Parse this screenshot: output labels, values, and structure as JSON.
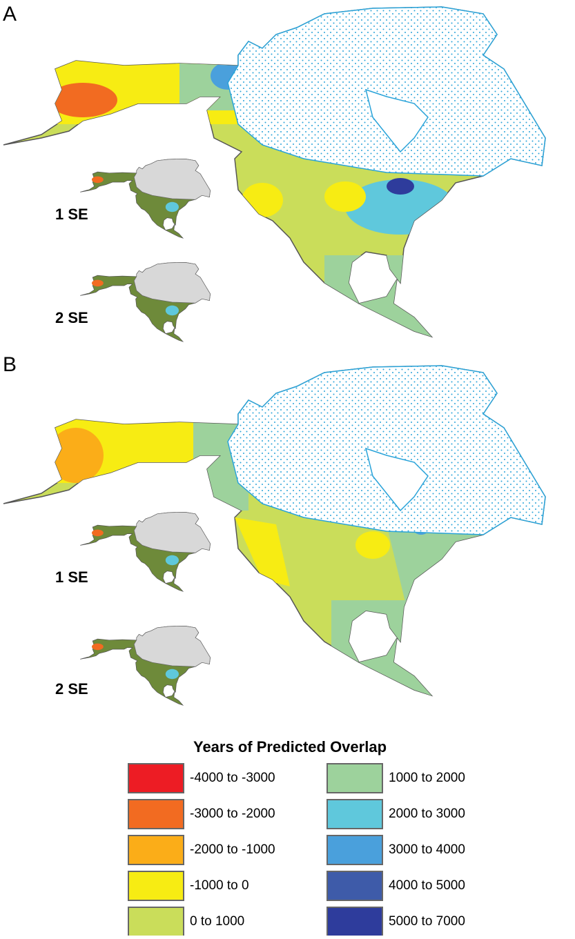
{
  "panels": [
    {
      "label": "A",
      "insets": [
        {
          "label": "1 SE"
        },
        {
          "label": "2 SE"
        }
      ]
    },
    {
      "label": "B",
      "insets": [
        {
          "label": "1 SE"
        },
        {
          "label": "2 SE"
        }
      ]
    }
  ],
  "legend": {
    "title": "Years of Predicted Overlap",
    "items": [
      {
        "label": "-4000 to -3000",
        "color": "#ed1c24"
      },
      {
        "label": "-3000 to -2000",
        "color": "#f26b21"
      },
      {
        "label": "-2000 to -1000",
        "color": "#fbad18"
      },
      {
        "label": "-1000 to 0",
        "color": "#f7ec13"
      },
      {
        "label": "0 to 1000",
        "color": "#cadd5a"
      },
      {
        "label": "1000 to 2000",
        "color": "#9dd29c"
      },
      {
        "label": "2000 to 3000",
        "color": "#5fc8dc"
      },
      {
        "label": "3000 to 4000",
        "color": "#4aa0dc"
      },
      {
        "label": "4000 to 5000",
        "color": "#3e5ba9"
      },
      {
        "label": "5000 to 7000",
        "color": "#2e3c9c"
      }
    ]
  }
}
